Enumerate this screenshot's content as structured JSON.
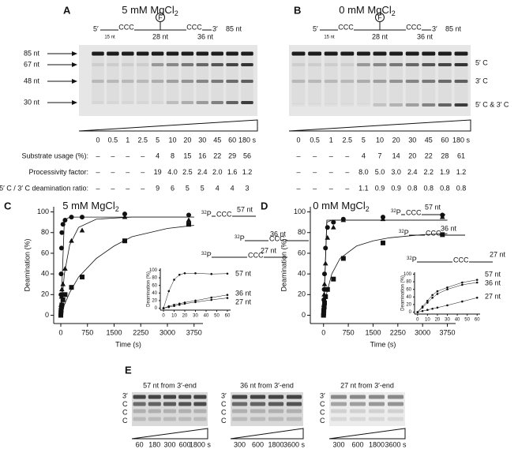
{
  "panel_a": {
    "letter": "A",
    "title": "5 mM MgCl",
    "title_subscript": "2",
    "substrate": {
      "five": "5′",
      "ccc_left": "CCC",
      "label_left": "15 nt",
      "flag": "F",
      "label_mid": "28 nt",
      "ccc_right": "CCC",
      "three": "3′",
      "label_right": "36 nt",
      "length": "85 nt"
    },
    "markers": [
      "85 nt",
      "67 nt",
      "48 nt",
      "30 nt"
    ],
    "times": [
      "0",
      "0.5",
      "1",
      "2.5",
      "5",
      "10",
      "20",
      "30",
      "45",
      "60",
      "180 s"
    ],
    "rows": [
      {
        "label": "Substrate usage (%):",
        "values": [
          "–",
          "–",
          "–",
          "–",
          "4",
          "8",
          "15",
          "16",
          "22",
          "29",
          "56"
        ]
      },
      {
        "label": "Processivity factor:",
        "values": [
          "–",
          "–",
          "–",
          "–",
          "19",
          "4.0",
          "2.5",
          "2.4",
          "2.0",
          "1.6",
          "1.2"
        ]
      },
      {
        "label": "5′ C / 3′ C deamination ratio:",
        "values": [
          "–",
          "–",
          "–",
          "–",
          "9",
          "6",
          "5",
          "5",
          "4",
          "4",
          "3"
        ]
      }
    ]
  },
  "panel_b": {
    "letter": "B",
    "title": "0 mM MgCl",
    "title_subscript": "2",
    "substrate": {
      "five": "5′",
      "ccc_left": "CCC",
      "label_left": "15 nt",
      "flag": "F",
      "label_mid": "28 nt",
      "ccc_right": "CCC",
      "three": "3′",
      "label_right": "36 nt",
      "length": "85 nt"
    },
    "band_labels": [
      "5′ C",
      "3′ C",
      "5′ C & 3′ C"
    ],
    "times": [
      "0",
      "0.5",
      "1",
      "2.5",
      "5",
      "10",
      "20",
      "30",
      "45",
      "60",
      "180 s"
    ],
    "rows": [
      {
        "values": [
          "–",
          "–",
          "–",
          "–",
          "4",
          "7",
          "14",
          "20",
          "22",
          "28",
          "61"
        ]
      },
      {
        "values": [
          "–",
          "–",
          "–",
          "–",
          "8.0",
          "5.0",
          "3.0",
          "2.4",
          "2.2",
          "1.9",
          "1.2"
        ]
      },
      {
        "values": [
          "–",
          "–",
          "–",
          "–",
          "1.1",
          "0.9",
          "0.9",
          "0.8",
          "0.8",
          "0.8",
          "0.8"
        ]
      }
    ]
  },
  "panel_c": {
    "letter": "C",
    "title": "5 mM MgCl",
    "title_subscript": "2",
    "xlabel": "Time (s)",
    "ylabel": "Deamination (%)",
    "xlim": [
      -200,
      4000
    ],
    "ylim": [
      -8,
      105
    ],
    "xticks": [
      0,
      750,
      1500,
      2250,
      3000,
      3750
    ],
    "yticks": [
      0,
      20,
      40,
      60,
      80,
      100
    ],
    "x": [
      0,
      5,
      10,
      20,
      30,
      60,
      120,
      300,
      600,
      1800,
      3600
    ],
    "fit_x": [
      0,
      100,
      250,
      500,
      1000,
      1500,
      2000,
      3000,
      3750
    ],
    "series": [
      {
        "name": "57 nt",
        "marker": "circle",
        "isotope": "32",
        "label": "P",
        "ccc": "CCC",
        "values": [
          0,
          20,
          40,
          65,
          80,
          88,
          92,
          95,
          95,
          98,
          97
        ],
        "fit_values": [
          0,
          92,
          95,
          95,
          95,
          95,
          95,
          95,
          95
        ]
      },
      {
        "name": "36 nt",
        "marker": "triangle",
        "isotope": "32",
        "label": "P",
        "ccc": "CCC",
        "values": [
          0,
          5,
          10,
          18,
          25,
          30,
          45,
          72,
          82,
          95,
          92
        ],
        "fit_values": [
          0,
          40,
          68,
          85,
          93,
          94,
          95,
          95,
          95
        ]
      },
      {
        "name": "27 nt",
        "marker": "square",
        "isotope": "32",
        "label": "P",
        "ccc": "CCC",
        "values": [
          0,
          3,
          5,
          8,
          10,
          15,
          20,
          27,
          37,
          72,
          88
        ],
        "fit_values": [
          0,
          10,
          22,
          37,
          55,
          67,
          76,
          84,
          87
        ]
      }
    ],
    "inset": {
      "ylabel": "Deamination (%)",
      "xlim": [
        -3,
        63
      ],
      "ylim": [
        -5,
        105
      ],
      "xticks": [
        0,
        10,
        20,
        30,
        40,
        50,
        60
      ],
      "yticks": [
        0,
        20,
        40,
        60,
        80,
        100
      ],
      "x": [
        0,
        5,
        10,
        15,
        20,
        30,
        45,
        60
      ],
      "series": [
        {
          "name": "57 nt",
          "values": [
            0,
            45,
            75,
            88,
            92,
            92,
            90,
            91
          ]
        },
        {
          "name": "36 nt",
          "values": [
            0,
            5,
            9,
            12,
            15,
            20,
            28,
            35
          ]
        },
        {
          "name": "27 nt",
          "values": [
            0,
            3,
            6,
            9,
            12,
            16,
            22,
            27
          ]
        }
      ]
    }
  },
  "panel_d": {
    "letter": "D",
    "title": "0 mM MgCl",
    "title_subscript": "2",
    "xlabel": "Time (s)",
    "ylabel": "Deamination (%)",
    "xlim": [
      -400,
      4000
    ],
    "ylim": [
      -8,
      105
    ],
    "xticks": [
      0,
      750,
      1500,
      2250,
      3000,
      3750
    ],
    "yticks": [
      0,
      20,
      40,
      60,
      80,
      100
    ],
    "x": [
      0,
      5,
      10,
      20,
      30,
      60,
      120,
      300,
      600,
      1800,
      3600
    ],
    "fit_x": [
      0,
      100,
      250,
      500,
      1000,
      1500,
      2000,
      3000,
      3750
    ],
    "series": [
      {
        "name": "57 nt",
        "marker": "circle",
        "isotope": "32",
        "label": "P",
        "ccc": "CCC",
        "values": [
          0,
          5,
          15,
          25,
          40,
          65,
          85,
          90,
          93,
          95,
          97
        ],
        "fit_values": [
          0,
          92,
          92,
          92,
          92,
          92,
          92,
          92,
          92
        ]
      },
      {
        "name": "36 nt",
        "marker": "triangle",
        "isotope": "32",
        "label": "P",
        "ccc": "CCC",
        "values": [
          0,
          3,
          10,
          20,
          30,
          50,
          75,
          85,
          92,
          93,
          95
        ],
        "fit_values": [
          0,
          90,
          92,
          92,
          92,
          92,
          92,
          92,
          92
        ]
      },
      {
        "name": "27 nt",
        "marker": "square",
        "isotope": "32",
        "label": "P",
        "ccc": "CCC",
        "values": [
          0,
          2,
          5,
          8,
          12,
          18,
          25,
          35,
          55,
          70,
          78
        ],
        "fit_values": [
          0,
          22,
          40,
          55,
          67,
          72,
          75,
          78,
          79
        ]
      }
    ],
    "inset": {
      "ylabel": "Deamination (%)",
      "xlim": [
        -3,
        63
      ],
      "ylim": [
        -5,
        105
      ],
      "xticks": [
        0,
        10,
        20,
        30,
        40,
        50,
        60
      ],
      "yticks": [
        0,
        20,
        40,
        60,
        80,
        100
      ],
      "x": [
        0,
        5,
        10,
        15,
        20,
        30,
        45,
        60
      ],
      "series": [
        {
          "name": "57 nt",
          "values": [
            0,
            15,
            30,
            45,
            55,
            65,
            78,
            85
          ]
        },
        {
          "name": "36 nt",
          "values": [
            0,
            12,
            25,
            38,
            48,
            60,
            72,
            78
          ]
        },
        {
          "name": "27 nt",
          "values": [
            0,
            3,
            6,
            9,
            12,
            18,
            28,
            38
          ]
        }
      ]
    }
  },
  "panel_e": {
    "letter": "E",
    "gels": [
      {
        "title": "57 nt from 3′-end",
        "side_labels": [
          "3′",
          "C",
          "C",
          "C"
        ],
        "times": [
          "60",
          "180",
          "300",
          "600",
          "1800 s"
        ]
      },
      {
        "title": "36 nt from 3′-end",
        "side_labels": [
          "3′",
          "C",
          "C",
          "C"
        ],
        "times": [
          "300",
          "600",
          "1800",
          "3600 s"
        ]
      },
      {
        "title": "27 nt from 3′-end",
        "side_labels": [
          "3′",
          "C",
          "C",
          "C"
        ],
        "times": [
          "300",
          "600",
          "1800",
          "3600 s"
        ]
      }
    ]
  }
}
